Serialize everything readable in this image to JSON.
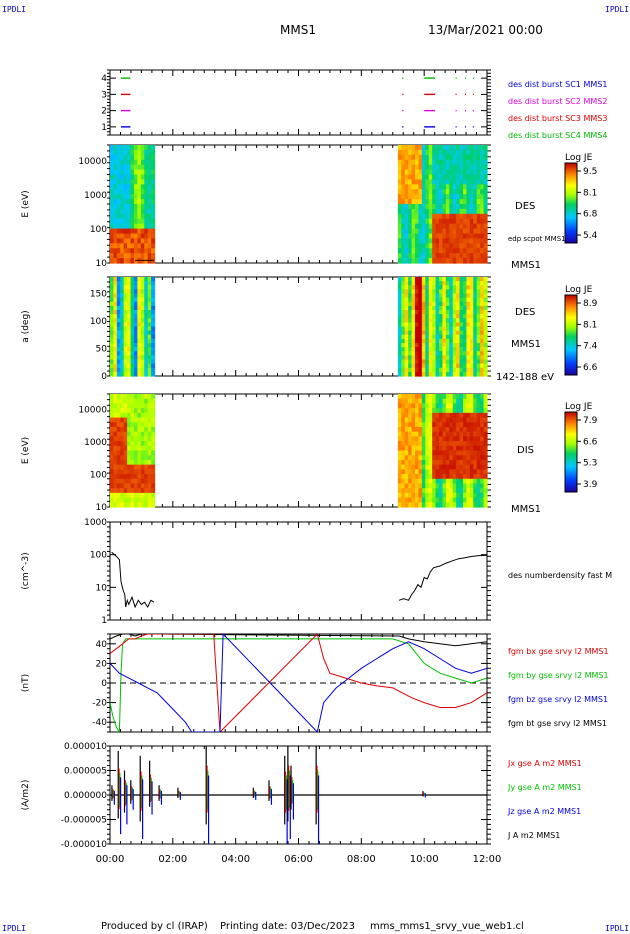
{
  "header": {
    "corner_left": "IPDLI",
    "corner_right": "IPDLI",
    "spacecraft": "MMS1",
    "date_time": "13/Mar/2021 00:00"
  },
  "footer": {
    "corner_left": "IPDLI",
    "corner_right": "IPDLI",
    "produced_by": "Produced by cl (IRAP)",
    "printing_date": "Printing date: 03/Dec/2023",
    "filename": "mms_mms1_srvy_vue_web1.cl"
  },
  "time_axis": {
    "ticks": [
      "00:00",
      "02:00",
      "04:00",
      "06:00",
      "08:00",
      "10:00",
      "12:00"
    ],
    "range_hours": [
      0,
      12
    ]
  },
  "colors": {
    "red": "#e00000",
    "green": "#00c000",
    "blue": "#0000e0",
    "magenta": "#e000e0",
    "black": "#000000",
    "label_blue": "#0000cc"
  },
  "chart_data": [
    {
      "type": "scatter",
      "id": "burst",
      "yticks": [
        "4",
        "3",
        "2",
        "1"
      ],
      "ylim": [
        0.5,
        4.5
      ],
      "legend": [
        {
          "text": "des dist burst SC1 MMS1",
          "color": "#0000dd"
        },
        {
          "text": "des dist burst SC2 MMS2",
          "color": "#dd00dd"
        },
        {
          "text": "des dist burst SC3 MMS3",
          "color": "#dd0000"
        },
        {
          "text": "des dist burst SC4 MMS4",
          "color": "#00bb00"
        }
      ],
      "series": [
        {
          "y": 1,
          "color": "#0000dd",
          "segments": [
            [
              0.35,
              0.65
            ],
            [
              9.3,
              9.34
            ],
            [
              10.0,
              10.35
            ],
            [
              11.0,
              11.03
            ],
            [
              11.3,
              11.33
            ],
            [
              11.55,
              11.58
            ]
          ]
        },
        {
          "y": 2,
          "color": "#dd00dd",
          "segments": [
            [
              0.35,
              0.65
            ],
            [
              9.3,
              9.34
            ],
            [
              10.0,
              10.35
            ],
            [
              11.0,
              11.03
            ],
            [
              11.3,
              11.33
            ],
            [
              11.55,
              11.58
            ]
          ]
        },
        {
          "y": 3,
          "color": "#dd0000",
          "segments": [
            [
              0.35,
              0.65
            ],
            [
              9.3,
              9.34
            ],
            [
              10.0,
              10.35
            ],
            [
              11.0,
              11.03
            ],
            [
              11.3,
              11.33
            ],
            [
              11.55,
              11.58
            ]
          ]
        },
        {
          "y": 4,
          "color": "#00bb00",
          "segments": [
            [
              0.35,
              0.65
            ],
            [
              9.3,
              9.34
            ],
            [
              10.0,
              10.35
            ],
            [
              11.0,
              11.03
            ],
            [
              11.3,
              11.33
            ],
            [
              11.55,
              11.58
            ]
          ]
        }
      ]
    },
    {
      "type": "heatmap",
      "id": "des_energy",
      "ylabel": "E (eV)",
      "yscale": "log",
      "yticks": [
        "10000",
        "1000",
        "100",
        "10"
      ],
      "ylim": [
        10,
        30000
      ],
      "right_labels": [
        "DES",
        "edp scpot MMS1",
        "MMS1"
      ],
      "colorbar": {
        "title": "Log JE",
        "ticks": [
          "9.5",
          "8.1",
          "6.8",
          "5.4"
        ]
      },
      "data_intervals": [
        [
          0,
          1.4
        ],
        [
          9.2,
          12
        ]
      ]
    },
    {
      "type": "heatmap",
      "id": "des_pitch",
      "ylabel": "a (deg)",
      "yticks": [
        "150",
        "100",
        "50",
        "0"
      ],
      "ylim": [
        0,
        180
      ],
      "right_labels": [
        "DES",
        "MMS1",
        "142-188 eV"
      ],
      "colorbar": {
        "title": "Log JE",
        "ticks": [
          "8.9",
          "8.1",
          "7.4",
          "6.6"
        ]
      },
      "data_intervals": [
        [
          0,
          1.4
        ],
        [
          9.2,
          12
        ]
      ]
    },
    {
      "type": "heatmap",
      "id": "dis_energy",
      "ylabel": "E (eV)",
      "yscale": "log",
      "yticks": [
        "10000",
        "1000",
        "100",
        "10"
      ],
      "ylim": [
        10,
        30000
      ],
      "right_labels": [
        "DIS",
        "MMS1"
      ],
      "colorbar": {
        "title": "Log JE",
        "ticks": [
          "7.9",
          "6.6",
          "5.3",
          "3.9"
        ]
      },
      "data_intervals": [
        [
          0,
          1.4
        ],
        [
          9.2,
          12
        ]
      ]
    },
    {
      "type": "line",
      "id": "density",
      "ylabel": "(cm^-3)",
      "yscale": "log",
      "yticks": [
        "1000",
        "100",
        "10",
        "1"
      ],
      "ylim": [
        1,
        1000
      ],
      "series": [
        {
          "name": "des numberdensity fast M",
          "color": "#000000",
          "x": [
            0.05,
            0.2,
            0.3,
            0.35,
            0.42,
            0.47,
            0.5,
            0.55,
            0.6,
            0.7,
            0.8,
            0.9,
            1.0,
            1.1,
            1.2,
            1.3,
            1.4
          ],
          "y": [
            120,
            90,
            70,
            15,
            8,
            6,
            2.5,
            4,
            3,
            5,
            2.5,
            4,
            3,
            3.5,
            2.5,
            4,
            3.5
          ]
        },
        {
          "name": "",
          "color": "#000000",
          "x": [
            9.2,
            9.35,
            9.5,
            9.6,
            9.7,
            9.8,
            9.9,
            10.0,
            10.1,
            10.2,
            10.3,
            10.5,
            10.7,
            10.9,
            11.1,
            11.3,
            11.5,
            11.7,
            11.9,
            12.0
          ],
          "y": [
            4,
            4.5,
            4,
            6,
            8,
            12,
            10,
            20,
            18,
            30,
            40,
            45,
            55,
            65,
            75,
            80,
            88,
            92,
            95,
            95
          ]
        }
      ]
    },
    {
      "type": "line",
      "id": "fgm",
      "ylabel": "(nT)",
      "yticks": [
        "40",
        "20",
        "0",
        "-20",
        "-40"
      ],
      "ylim": [
        -50,
        50
      ],
      "series": [
        {
          "name": "fgm bx gse srvy l2 MMS1",
          "color": "#e00000",
          "x": [
            0,
            0.2,
            0.4,
            0.6,
            0.8,
            1.0,
            1.2,
            1.4,
            3.3,
            3.5,
            6.6,
            6.8,
            7.0,
            7.5,
            8.0,
            8.5,
            9.0,
            9.3,
            9.6,
            10.0,
            10.5,
            11.0,
            11.5,
            12.0
          ],
          "y": [
            30,
            35,
            40,
            45,
            45,
            48,
            50,
            50,
            50,
            -50,
            50,
            25,
            10,
            5,
            0,
            -3,
            -5,
            -10,
            -15,
            -20,
            -25,
            -25,
            -20,
            -10
          ]
        },
        {
          "name": "fgm by gse srvy l2 MMS1",
          "color": "#00c000",
          "x": [
            0,
            0.1,
            0.2,
            0.3,
            0.35,
            0.4,
            0.5,
            1.0,
            1.4,
            9.0,
            9.5,
            10.0,
            10.5,
            11.0,
            11.5,
            12.0
          ],
          "y": [
            -20,
            -35,
            -45,
            -50,
            10,
            40,
            45,
            45,
            45,
            45,
            40,
            20,
            10,
            5,
            0,
            5
          ]
        },
        {
          "name": "fgm bz gse srvy l2 MMS1",
          "color": "#0000e0",
          "x": [
            0,
            0.3,
            0.6,
            0.9,
            1.2,
            1.5,
            1.8,
            2.1,
            2.4,
            2.6,
            3.5,
            3.6,
            6.6,
            6.8,
            7.2,
            7.6,
            8.0,
            8.5,
            9.0,
            9.5,
            10.0,
            10.5,
            11.0,
            11.5,
            12.0
          ],
          "y": [
            20,
            10,
            5,
            0,
            -5,
            -10,
            -20,
            -30,
            -40,
            -50,
            -50,
            50,
            -50,
            -20,
            -5,
            5,
            15,
            25,
            35,
            42,
            35,
            25,
            15,
            10,
            15
          ]
        },
        {
          "name": "fgm bt gse srvy l2 MMS1",
          "color": "#000000",
          "x": [
            0,
            0.2,
            0.4,
            0.6,
            0.8,
            1.0,
            1.2,
            1.4,
            9.2,
            9.5,
            10.0,
            10.5,
            11.0,
            11.5,
            12.0
          ],
          "y": [
            45,
            48,
            50,
            50,
            48,
            50,
            50,
            50,
            48,
            45,
            42,
            40,
            38,
            40,
            42
          ]
        }
      ]
    },
    {
      "type": "line",
      "id": "current",
      "ylabel": "(A/m2)",
      "yticks": [
        "0.000010",
        "0.000005",
        "0.000000",
        "-0.000005",
        "-0.000010"
      ],
      "ylim": [
        -1e-05,
        1e-05
      ],
      "series": [
        {
          "name": "Jx gse A m2 MMS1",
          "color": "#e00000"
        },
        {
          "name": "Jy gse A m2 MMS1",
          "color": "#00c000"
        },
        {
          "name": "Jz gse A m2 MMS1",
          "color": "#0000e0"
        },
        {
          "name": "J A m2 MMS1",
          "color": "#000000"
        }
      ],
      "spikes": [
        {
          "t": 0.1,
          "pos": 2e-06,
          "neg": -2e-06
        },
        {
          "t": 0.3,
          "pos": 9e-06,
          "neg": -8e-06
        },
        {
          "t": 0.5,
          "pos": 5e-06,
          "neg": -6e-06
        },
        {
          "t": 0.7,
          "pos": 3e-06,
          "neg": -3e-06
        },
        {
          "t": 1.0,
          "pos": 8e-06,
          "neg": -9e-06
        },
        {
          "t": 1.3,
          "pos": 7e-06,
          "neg": -4e-06
        },
        {
          "t": 1.6,
          "pos": 2e-06,
          "neg": -2e-06
        },
        {
          "t": 2.2,
          "pos": 1.5e-06,
          "neg": -1e-06
        },
        {
          "t": 3.1,
          "pos": 1e-05,
          "neg": -1e-05
        },
        {
          "t": 4.6,
          "pos": 1.5e-06,
          "neg": -1e-06
        },
        {
          "t": 5.1,
          "pos": 3e-06,
          "neg": -2e-06
        },
        {
          "t": 5.6,
          "pos": 8e-06,
          "neg": -1e-05
        },
        {
          "t": 5.7,
          "pos": 1e-05,
          "neg": -9e-06
        },
        {
          "t": 5.8,
          "pos": 6e-06,
          "neg": -5e-06
        },
        {
          "t": 6.6,
          "pos": 1e-05,
          "neg": -1e-05
        },
        {
          "t": 10.0,
          "pos": 8e-07,
          "neg": -5e-07
        }
      ]
    }
  ]
}
